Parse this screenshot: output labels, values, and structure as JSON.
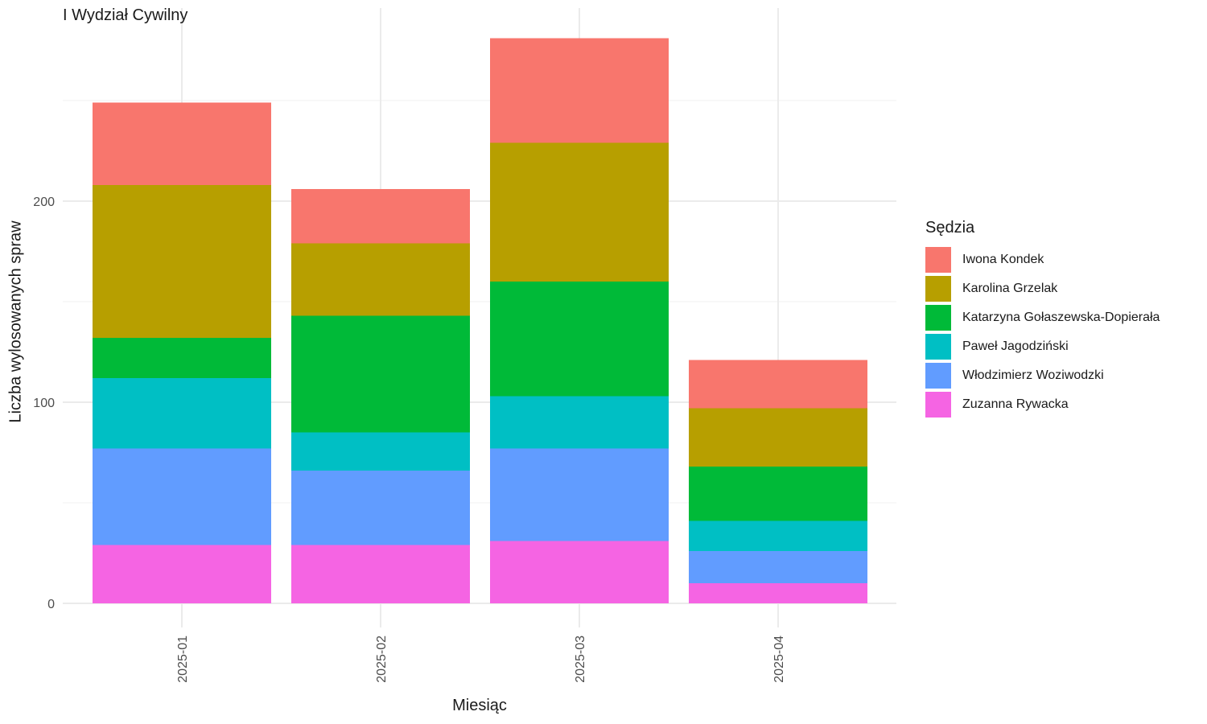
{
  "chart_data": {
    "type": "bar",
    "stacked": true,
    "title": "I Wydział Cywilny",
    "xlabel": "Miesiąc",
    "ylabel": "Liczba wylosowanych spraw",
    "categories": [
      "2025-01",
      "2025-02",
      "2025-03",
      "2025-04"
    ],
    "ylim": [
      0,
      300
    ],
    "yticks": [
      0,
      100,
      200
    ],
    "grid": true,
    "legend": {
      "title": "Sędzia",
      "position": "right"
    },
    "series": [
      {
        "name": "Iwona Kondek",
        "color": "#F8766D",
        "values": [
          41,
          27,
          52,
          24
        ]
      },
      {
        "name": "Karolina Grzelak",
        "color": "#B79F00",
        "values": [
          76,
          36,
          69,
          29
        ]
      },
      {
        "name": "Katarzyna Gołaszewska-Dopierała",
        "color": "#00BA38",
        "values": [
          20,
          58,
          57,
          27
        ]
      },
      {
        "name": "Paweł Jagodziński",
        "color": "#00BFC4",
        "values": [
          35,
          19,
          26,
          15
        ]
      },
      {
        "name": "Włodzimierz Woziwodzki",
        "color": "#619CFF",
        "values": [
          48,
          37,
          46,
          16
        ]
      },
      {
        "name": "Zuzanna Rywacka",
        "color": "#F564E3",
        "values": [
          29,
          29,
          31,
          10
        ]
      }
    ]
  }
}
